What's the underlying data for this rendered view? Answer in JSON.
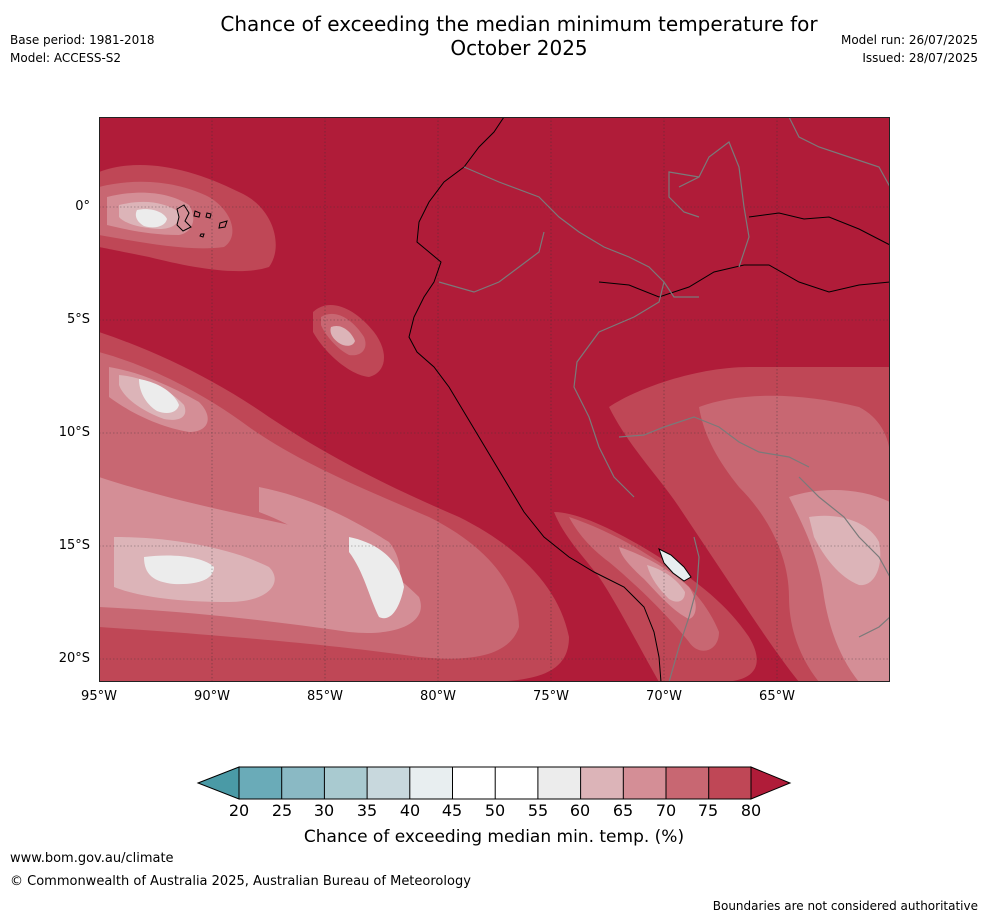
{
  "header": {
    "title_line1": "Chance of exceeding the median minimum temperature for",
    "title_line2": "October 2025",
    "base_period": "Base period: 1981-2018",
    "model": "Model: ACCESS-S2",
    "model_run": "Model run: 26/07/2025",
    "issued": "Issued: 28/07/2025"
  },
  "map": {
    "latitude_labels": [
      "0°",
      "5°S",
      "10°S",
      "15°S",
      "20°S"
    ],
    "longitude_labels": [
      "95°W",
      "90°W",
      "85°W",
      "80°W",
      "75°W",
      "70°W",
      "65°W"
    ],
    "lon_range": [
      -95,
      -60
    ],
    "lat_range": [
      -21,
      4
    ],
    "background_category": "80+",
    "grid": "dotted"
  },
  "colorbar": {
    "ticks": [
      "20",
      "25",
      "30",
      "35",
      "40",
      "45",
      "50",
      "55",
      "60",
      "65",
      "70",
      "75",
      "80"
    ],
    "colors": {
      "below_20": "#4a9aa6",
      "20_25": "#6aabb8",
      "25_30": "#8ab9c4",
      "30_35": "#a9cad0",
      "35_40": "#c8d8dd",
      "40_45": "#e8eef0",
      "45_50": "#ffffff",
      "50_55": "#ffffff",
      "55_60": "#ececec",
      "60_65": "#dcb4b8",
      "65_70": "#d48e96",
      "70_75": "#c86772",
      "75_80": "#bf4756",
      "above_80": "#b01c39"
    },
    "label": "Chance of exceeding median min. temp. (%)"
  },
  "footer": {
    "url": "www.bom.gov.au/climate",
    "copyright": "© Commonwealth of Australia 2025, Australian Bureau of Meteorology",
    "disclaimer": "Boundaries are not considered authoritative"
  }
}
